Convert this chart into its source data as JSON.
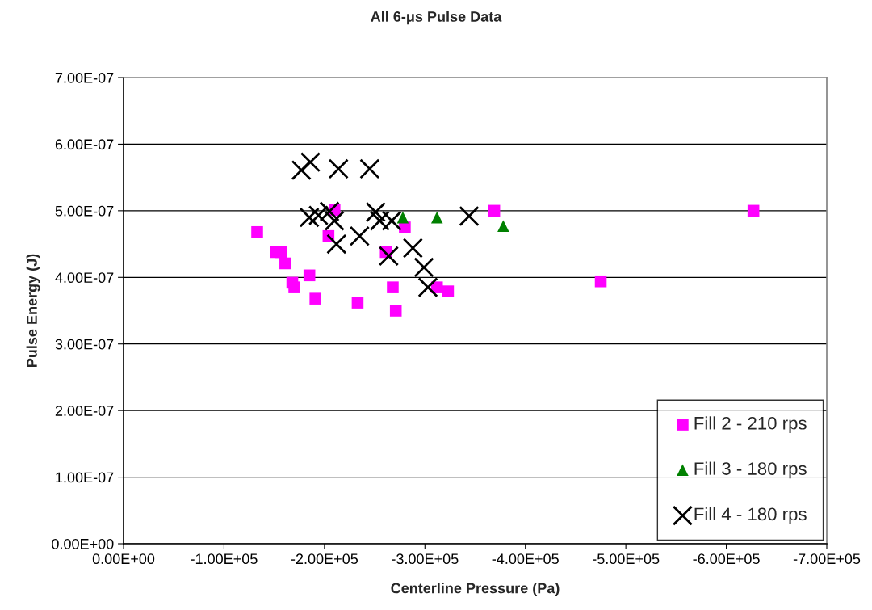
{
  "chart_data": {
    "type": "scatter",
    "title": "All 6-μs Pulse Data",
    "xlabel": "Centerline Pressure (Pa)",
    "ylabel": "Pulse Energy (J)",
    "xlim": [
      0,
      -700000
    ],
    "ylim": [
      0,
      7e-07
    ],
    "xticks": [
      {
        "value": 0,
        "label": "0.00E+00"
      },
      {
        "value": -100000,
        "label": "-1.00E+05"
      },
      {
        "value": -200000,
        "label": "-2.00E+05"
      },
      {
        "value": -300000,
        "label": "-3.00E+05"
      },
      {
        "value": -400000,
        "label": "-4.00E+05"
      },
      {
        "value": -500000,
        "label": "-5.00E+05"
      },
      {
        "value": -600000,
        "label": "-6.00E+05"
      },
      {
        "value": -700000,
        "label": "-7.00E+05"
      }
    ],
    "yticks": [
      {
        "value": 0,
        "label": "0.00E+00"
      },
      {
        "value": 1e-07,
        "label": "1.00E-07"
      },
      {
        "value": 2e-07,
        "label": "2.00E-07"
      },
      {
        "value": 3e-07,
        "label": "3.00E-07"
      },
      {
        "value": 4e-07,
        "label": "4.00E-07"
      },
      {
        "value": 5e-07,
        "label": "5.00E-07"
      },
      {
        "value": 6e-07,
        "label": "6.00E-07"
      },
      {
        "value": 7e-07,
        "label": "7.00E-07"
      }
    ],
    "grid": "y",
    "legend": "bottom right",
    "series": [
      {
        "name": "Fill 2 - 210 rps",
        "color": "#ff00ff",
        "marker": "square",
        "x": [
          -133000,
          -152000,
          -157000,
          -161000,
          -168000,
          -170000,
          -185000,
          -191000,
          -210000,
          -204000,
          -233000,
          -280000,
          -261000,
          -268000,
          -271000,
          -312000,
          -323000,
          -369000,
          -627000,
          -475000
        ],
        "values": [
          4.68e-07,
          4.38e-07,
          4.38e-07,
          4.21e-07,
          3.92e-07,
          3.85e-07,
          4.03e-07,
          3.68e-07,
          5.01e-07,
          4.62e-07,
          3.62e-07,
          4.75e-07,
          4.38e-07,
          3.85e-07,
          3.5e-07,
          3.85e-07,
          3.79e-07,
          5e-07,
          5e-07,
          3.94e-07
        ]
      },
      {
        "name": "Fill 3 - 180 rps",
        "color": "#008000",
        "marker": "triangle",
        "x": [
          -278000,
          -312000,
          -378000
        ],
        "values": [
          4.9e-07,
          4.9e-07,
          4.77e-07
        ]
      },
      {
        "name": "Fill 4 - 180 rps",
        "color": "#000000",
        "marker": "cross",
        "x": [
          -177000,
          -186000,
          -214000,
          -245000,
          -185000,
          -194000,
          -205000,
          -210000,
          -212000,
          -235000,
          -251000,
          -255000,
          -267000,
          -264000,
          -288000,
          -299000,
          -303000,
          -344000
        ],
        "values": [
          5.61e-07,
          5.73e-07,
          5.63e-07,
          5.63e-07,
          4.9e-07,
          4.93e-07,
          4.99e-07,
          4.85e-07,
          4.5e-07,
          4.62e-07,
          4.98e-07,
          4.85e-07,
          4.85e-07,
          4.32e-07,
          4.44e-07,
          4.15e-07,
          3.85e-07,
          4.92e-07
        ]
      }
    ]
  }
}
